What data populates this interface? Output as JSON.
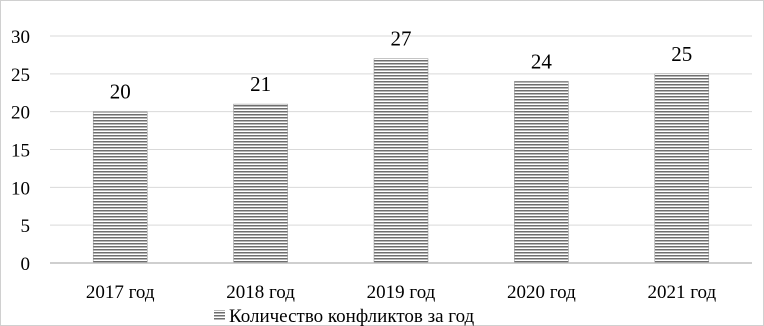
{
  "chart_data": {
    "type": "bar",
    "categories": [
      "2017 год",
      "2018 год",
      "2019 год",
      "2020 год",
      "2021 год"
    ],
    "series": [
      {
        "name": "Количество конфликтов за год",
        "values": [
          20,
          21,
          27,
          24,
          25
        ]
      }
    ],
    "data_labels": [
      "20",
      "21",
      "27",
      "24",
      "25"
    ],
    "y_ticks": [
      "0",
      "5",
      "10",
      "15",
      "20",
      "25",
      "30"
    ],
    "ylim": [
      0,
      30
    ],
    "y_tick_step": 5,
    "grid": true,
    "legend_position": "bottom",
    "colors": {
      "bar_stripe_dark": "#6e6e6e",
      "bar_stripe_light": "#ffffff",
      "gridline": "#d9d9d9",
      "axis": "#bfbfbf"
    }
  }
}
